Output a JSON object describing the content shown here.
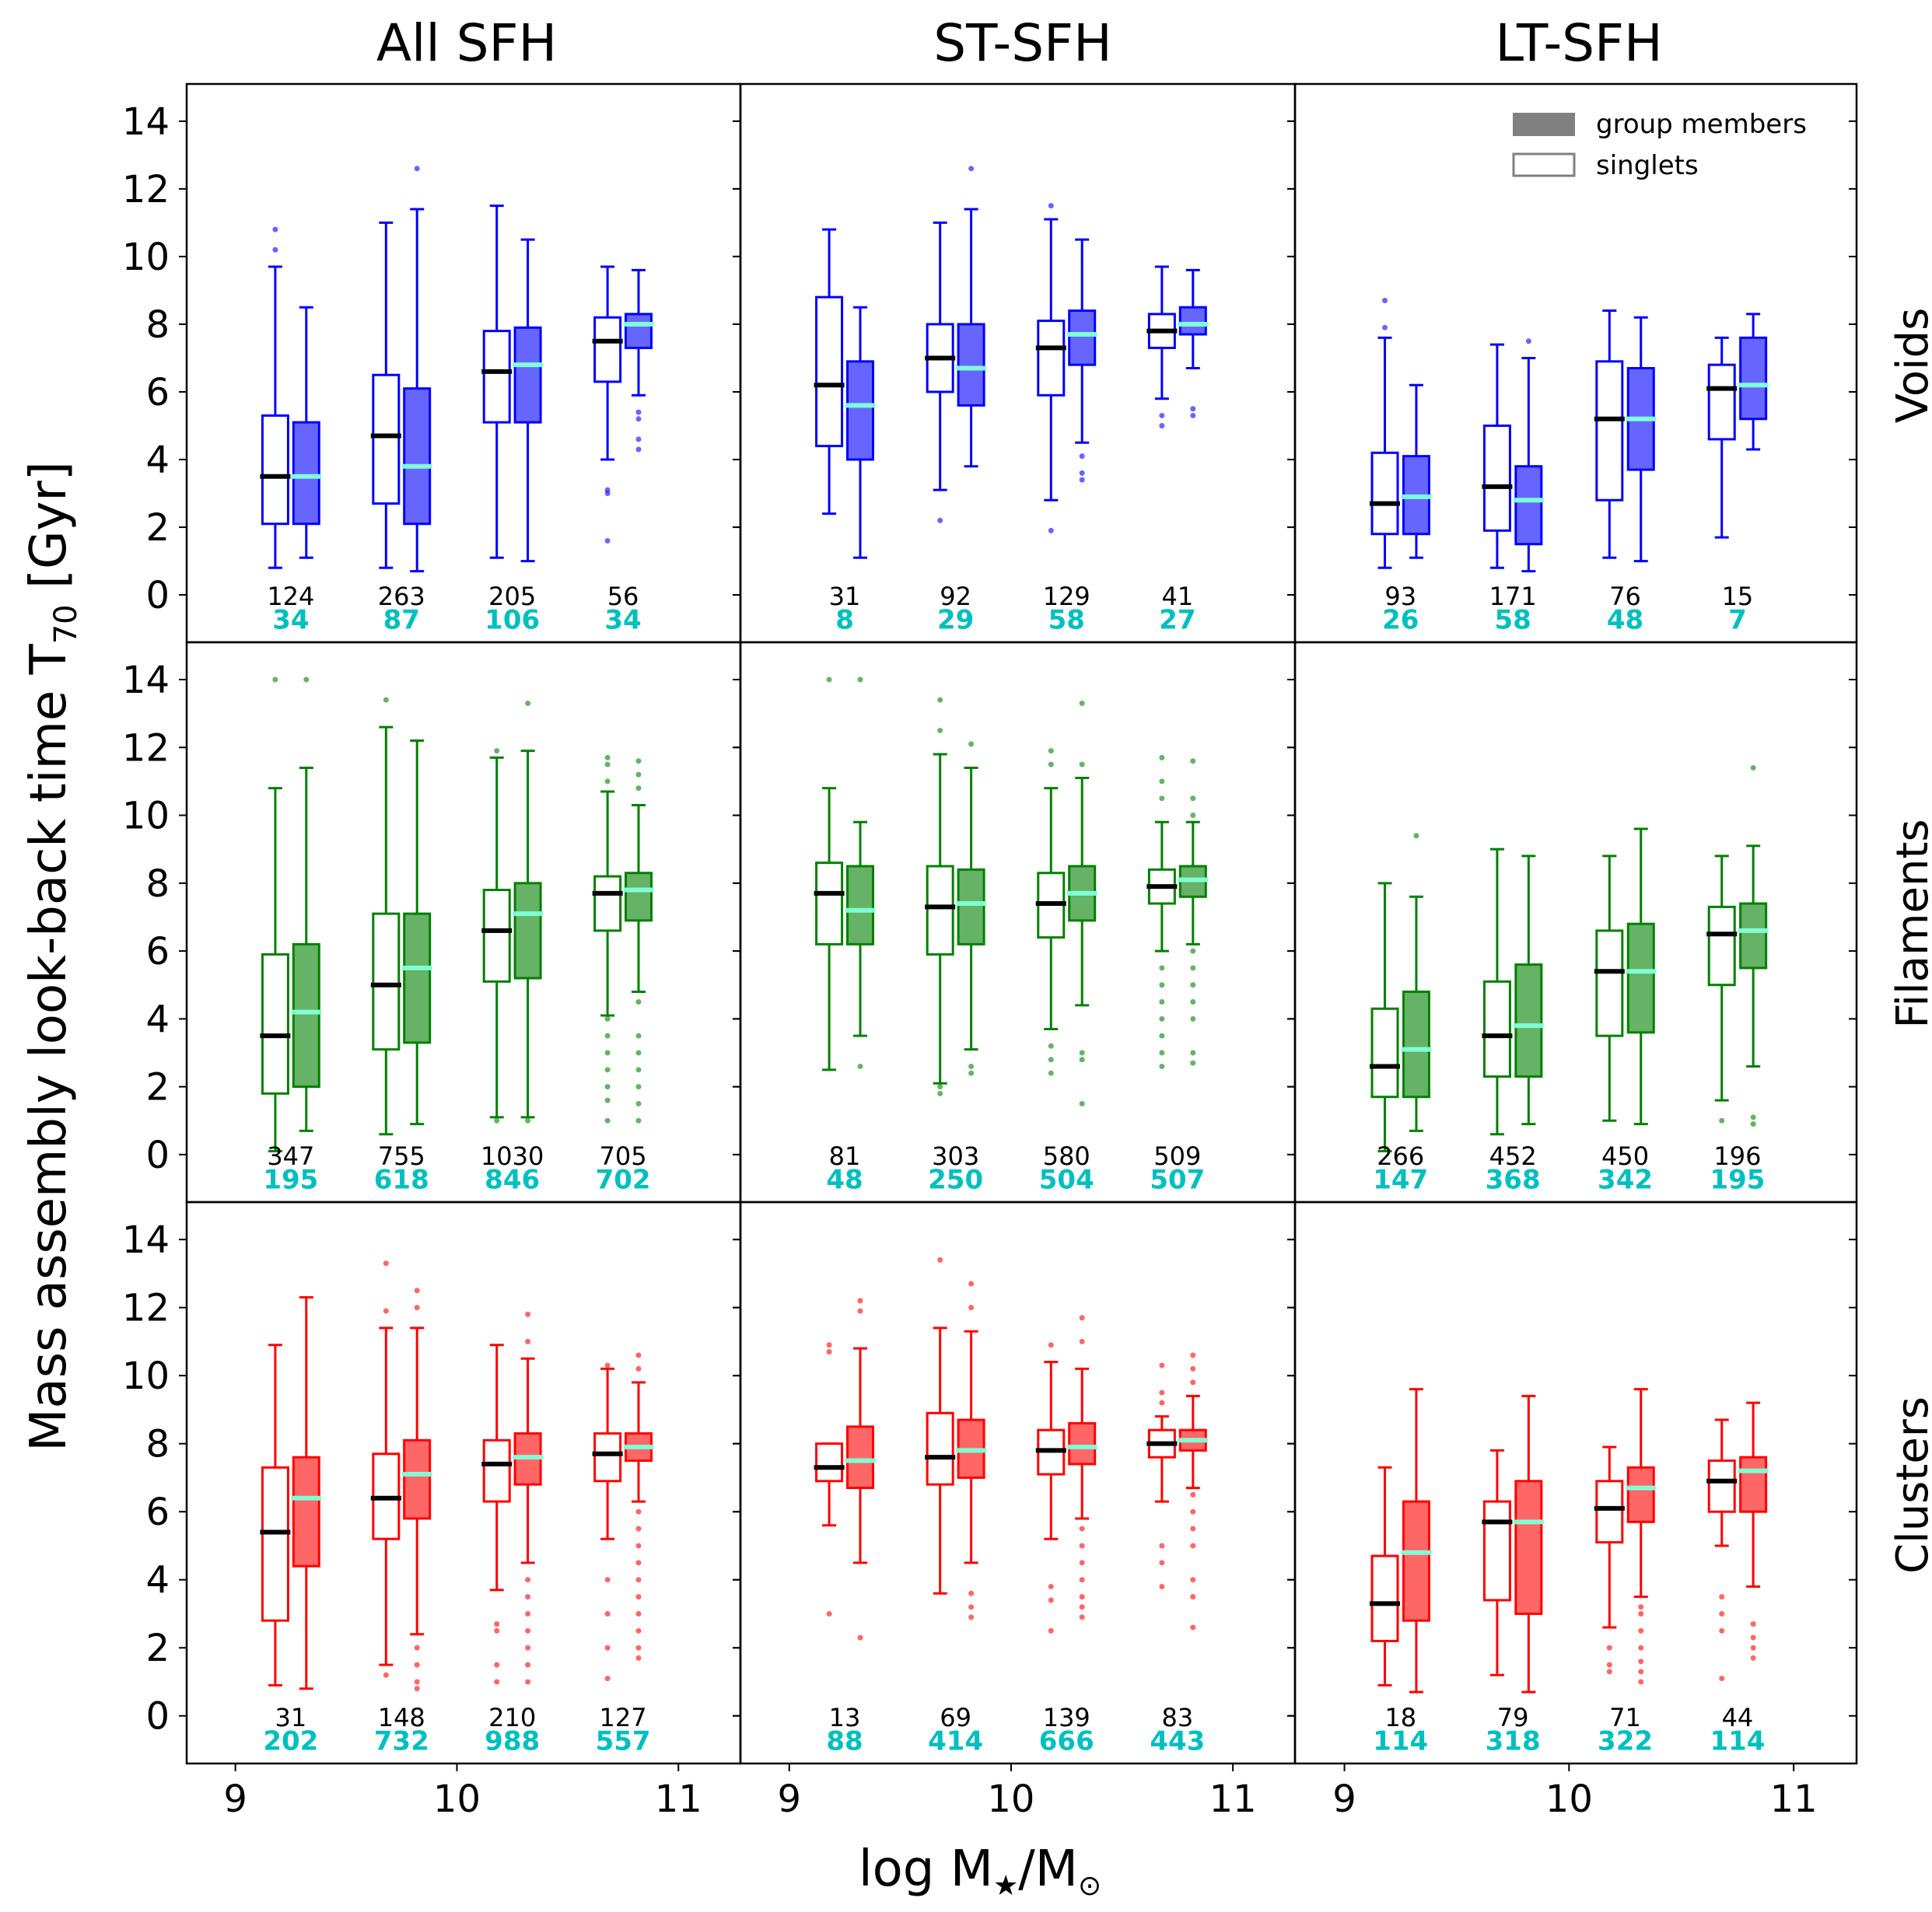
{
  "chart_data": {
    "type": "boxplot",
    "ylabel": "Mass assembly look-back time T",
    "ylabel_sub": "70",
    "ylabel_unit": " [Gyr]",
    "xlabel": "log M",
    "xlabel_star": "★",
    "xlabel_tail": "/M",
    "xlabel_sun": "⊙",
    "xlim": [
      8.78,
      11.28
    ],
    "ylim": [
      -1.4,
      15.1
    ],
    "xticks": [
      9,
      10,
      11
    ],
    "yticks": [
      0,
      2,
      4,
      6,
      8,
      10,
      12,
      14
    ],
    "columns": [
      "All SFH",
      "ST-SFH",
      "LT-SFH"
    ],
    "rows": [
      {
        "label": "Voids",
        "color": "#0000ff",
        "fill": "#6666ff"
      },
      {
        "label": "Filaments",
        "color": "#008000",
        "fill": "#66b266"
      },
      {
        "label": "Clusters",
        "color": "#ff0000",
        "fill": "#ff6666"
      }
    ],
    "median_colors": {
      "singlets": "#000000",
      "groups": "#7fffd4"
    },
    "count_colors": {
      "singlets": "#000000",
      "groups": "#00bfbf"
    },
    "legend": {
      "filled": "group members",
      "open": "singlets"
    },
    "bins": [
      9.25,
      9.75,
      10.25,
      10.75
    ],
    "panels": [
      [
        {
          "n_singlets": [
            "124",
            "263",
            "205",
            "56"
          ],
          "n_groups": [
            "34",
            "87",
            "106",
            "34"
          ],
          "singlets": [
            [
              0.8,
              2.1,
              3.5,
              5.3,
              9.7
            ],
            [
              0.8,
              2.7,
              4.7,
              6.5,
              11.0
            ],
            [
              1.1,
              5.1,
              6.6,
              7.8,
              11.5
            ],
            [
              4.0,
              6.3,
              7.5,
              8.2,
              9.7
            ]
          ],
          "groups": [
            [
              1.1,
              2.1,
              3.5,
              5.1,
              8.5
            ],
            [
              0.7,
              2.1,
              3.8,
              6.1,
              11.4
            ],
            [
              1.0,
              5.1,
              6.8,
              7.9,
              10.5
            ],
            [
              5.9,
              7.3,
              8.0,
              8.3,
              9.6
            ]
          ],
          "out_s": [
            [
              10.2,
              10.8
            ],
            [],
            [],
            [
              1.6,
              3.0,
              3.1
            ]
          ],
          "out_g": [
            [],
            [
              12.6
            ],
            [],
            [
              4.3,
              4.6,
              5.2,
              5.4
            ]
          ]
        },
        {
          "n_singlets": [
            "31",
            "92",
            "129",
            "41"
          ],
          "n_groups": [
            "8",
            "29",
            "58",
            "27"
          ],
          "singlets": [
            [
              2.4,
              4.4,
              6.2,
              8.8,
              10.8
            ],
            [
              3.1,
              6.0,
              7.0,
              8.0,
              11.0
            ],
            [
              2.8,
              5.9,
              7.3,
              8.1,
              11.1
            ],
            [
              5.8,
              7.3,
              7.8,
              8.3,
              9.7
            ]
          ],
          "groups": [
            [
              1.1,
              4.0,
              5.6,
              6.9,
              8.5
            ],
            [
              3.8,
              5.6,
              6.7,
              8.0,
              11.4
            ],
            [
              4.5,
              6.8,
              7.7,
              8.4,
              10.5
            ],
            [
              6.7,
              7.7,
              8.0,
              8.5,
              9.6
            ]
          ],
          "out_s": [
            [],
            [
              2.2
            ],
            [
              1.9,
              11.5
            ],
            [
              5.0,
              5.3
            ]
          ],
          "out_g": [
            [],
            [
              12.6
            ],
            [
              3.4,
              3.6,
              4.1
            ],
            [
              5.3,
              5.5
            ]
          ]
        },
        {
          "n_singlets": [
            "93",
            "171",
            "76",
            "15"
          ],
          "n_groups": [
            "26",
            "58",
            "48",
            "7"
          ],
          "singlets": [
            [
              0.8,
              1.8,
              2.7,
              4.2,
              7.6
            ],
            [
              0.8,
              1.9,
              3.2,
              5.0,
              7.4
            ],
            [
              1.1,
              2.8,
              5.2,
              6.9,
              8.4
            ],
            [
              1.7,
              4.6,
              6.1,
              6.8,
              7.6
            ]
          ],
          "groups": [
            [
              1.1,
              1.8,
              2.9,
              4.1,
              6.2
            ],
            [
              0.7,
              1.5,
              2.8,
              3.8,
              7.0
            ],
            [
              1.0,
              3.7,
              5.2,
              6.7,
              8.2
            ],
            [
              4.3,
              5.2,
              6.2,
              7.6,
              8.3
            ]
          ],
          "out_s": [
            [
              7.9,
              8.7
            ],
            [],
            [],
            []
          ],
          "out_g": [
            [],
            [
              7.5
            ],
            [],
            []
          ]
        }
      ],
      [
        {
          "n_singlets": [
            "347",
            "755",
            "1030",
            "705"
          ],
          "n_groups": [
            "195",
            "618",
            "846",
            "702"
          ],
          "singlets": [
            [
              0.1,
              1.8,
              3.5,
              5.9,
              10.8
            ],
            [
              0.6,
              3.1,
              5.0,
              7.1,
              12.6
            ],
            [
              1.1,
              5.1,
              6.6,
              7.8,
              11.7
            ],
            [
              4.1,
              6.6,
              7.7,
              8.2,
              10.7
            ]
          ],
          "groups": [
            [
              0.7,
              2.0,
              4.2,
              6.2,
              11.4
            ],
            [
              0.9,
              3.3,
              5.5,
              7.1,
              12.2
            ],
            [
              1.1,
              5.2,
              7.1,
              8.0,
              11.9
            ],
            [
              4.8,
              6.9,
              7.8,
              8.3,
              10.3
            ]
          ],
          "out_s": [
            [
              14.0
            ],
            [
              13.4
            ],
            [
              1.0,
              11.9
            ],
            [
              1.0,
              1.6,
              2.0,
              2.5,
              3.0,
              3.5,
              4.0,
              11.0,
              11.5,
              11.7
            ]
          ],
          "out_g": [
            [
              14.0
            ],
            [],
            [
              1.0,
              13.3
            ],
            [
              1.0,
              1.5,
              2.0,
              2.5,
              3.0,
              3.5,
              4.5,
              10.8,
              11.2,
              11.6
            ]
          ]
        },
        {
          "n_singlets": [
            "81",
            "303",
            "580",
            "509"
          ],
          "n_groups": [
            "48",
            "250",
            "504",
            "507"
          ],
          "singlets": [
            [
              2.5,
              6.2,
              7.7,
              8.6,
              10.8
            ],
            [
              2.1,
              5.9,
              7.3,
              8.5,
              11.8
            ],
            [
              3.7,
              6.4,
              7.4,
              8.3,
              10.8
            ],
            [
              6.0,
              7.4,
              7.9,
              8.4,
              9.8
            ]
          ],
          "groups": [
            [
              3.5,
              6.2,
              7.2,
              8.5,
              9.8
            ],
            [
              3.1,
              6.2,
              7.4,
              8.4,
              11.4
            ],
            [
              4.4,
              6.9,
              7.7,
              8.5,
              11.1
            ],
            [
              6.2,
              7.6,
              8.1,
              8.5,
              9.8
            ]
          ],
          "out_s": [
            [
              14.0
            ],
            [
              1.8,
              2.0,
              12.5,
              13.4
            ],
            [
              2.4,
              2.8,
              3.2,
              11.5,
              11.9
            ],
            [
              2.6,
              3.0,
              3.5,
              4.0,
              4.5,
              5.0,
              5.5,
              10.5,
              11.0,
              11.7
            ]
          ],
          "out_g": [
            [
              2.6,
              14.0
            ],
            [
              2.4,
              2.6,
              12.1
            ],
            [
              1.5,
              2.8,
              3.0,
              11.5,
              13.3
            ],
            [
              2.7,
              3.0,
              4.0,
              4.5,
              5.0,
              5.5,
              6.0,
              10.0,
              10.5,
              11.6
            ]
          ]
        },
        {
          "n_singlets": [
            "266",
            "452",
            "450",
            "196"
          ],
          "n_groups": [
            "147",
            "368",
            "342",
            "195"
          ],
          "singlets": [
            [
              0.1,
              1.7,
              2.6,
              4.3,
              8.0
            ],
            [
              0.6,
              2.3,
              3.5,
              5.1,
              9.0
            ],
            [
              1.0,
              3.5,
              5.4,
              6.6,
              8.8
            ],
            [
              1.6,
              5.0,
              6.5,
              7.3,
              8.8
            ]
          ],
          "groups": [
            [
              0.7,
              1.7,
              3.1,
              4.8,
              7.6
            ],
            [
              0.9,
              2.3,
              3.8,
              5.6,
              8.8
            ],
            [
              0.9,
              3.6,
              5.4,
              6.8,
              9.6
            ],
            [
              2.6,
              5.5,
              6.6,
              7.4,
              9.1
            ]
          ],
          "out_s": [
            [],
            [],
            [],
            [
              1.0
            ]
          ],
          "out_g": [
            [
              9.4
            ],
            [],
            [],
            [
              0.9,
              1.1,
              11.4
            ]
          ]
        }
      ],
      [
        {
          "n_singlets": [
            "31",
            "148",
            "210",
            "127"
          ],
          "n_groups": [
            "202",
            "732",
            "988",
            "557"
          ],
          "singlets": [
            [
              0.9,
              2.8,
              5.4,
              7.3,
              10.9
            ],
            [
              1.5,
              5.2,
              6.4,
              7.7,
              11.4
            ],
            [
              3.7,
              6.3,
              7.4,
              8.1,
              10.9
            ],
            [
              5.2,
              6.9,
              7.7,
              8.3,
              10.2
            ]
          ],
          "groups": [
            [
              0.8,
              4.4,
              6.4,
              7.6,
              12.3
            ],
            [
              2.4,
              5.8,
              7.1,
              8.1,
              11.4
            ],
            [
              4.5,
              6.8,
              7.6,
              8.3,
              10.5
            ],
            [
              6.3,
              7.5,
              7.9,
              8.3,
              9.8
            ]
          ],
          "out_s": [
            [],
            [
              1.2,
              11.9,
              13.3
            ],
            [
              1.0,
              1.5,
              2.5,
              2.7
            ],
            [
              1.1,
              2.0,
              3.0,
              4.0,
              10.3
            ]
          ],
          "out_g": [
            [],
            [
              0.8,
              1.0,
              1.5,
              2.0,
              12.0,
              12.5
            ],
            [
              1.0,
              1.5,
              2.0,
              2.5,
              3.0,
              3.5,
              4.0,
              11.0,
              11.8
            ],
            [
              1.7,
              2.0,
              2.5,
              3.0,
              3.5,
              4.0,
              4.5,
              5.0,
              5.5,
              6.0,
              10.2,
              10.6
            ]
          ]
        },
        {
          "n_singlets": [
            "13",
            "69",
            "139",
            "83"
          ],
          "n_groups": [
            "88",
            "414",
            "666",
            "443"
          ],
          "singlets": [
            [
              5.6,
              6.9,
              7.3,
              8.0,
              8.0
            ],
            [
              3.6,
              6.8,
              7.6,
              8.9,
              11.4
            ],
            [
              5.2,
              7.1,
              7.8,
              8.4,
              10.4
            ],
            [
              6.3,
              7.6,
              8.0,
              8.4,
              8.8
            ]
          ],
          "groups": [
            [
              4.5,
              6.7,
              7.5,
              8.5,
              10.8
            ],
            [
              4.5,
              7.0,
              7.8,
              8.7,
              11.3
            ],
            [
              5.8,
              7.4,
              7.9,
              8.6,
              10.2
            ],
            [
              6.7,
              7.8,
              8.1,
              8.4,
              9.4
            ]
          ],
          "out_s": [
            [
              3.0,
              10.7,
              10.9
            ],
            [
              13.4
            ],
            [
              2.5,
              3.4,
              3.8,
              10.9
            ],
            [
              3.8,
              4.5,
              5.0,
              9.2,
              9.5,
              10.3
            ]
          ],
          "out_g": [
            [
              2.3,
              11.9,
              12.2
            ],
            [
              2.9,
              3.2,
              3.6,
              12.0,
              12.7
            ],
            [
              2.9,
              3.2,
              3.5,
              4.0,
              4.5,
              5.0,
              5.5,
              11.0,
              11.7
            ],
            [
              2.6,
              3.5,
              4.0,
              5.0,
              5.5,
              6.0,
              6.5,
              9.8,
              10.2,
              10.6
            ]
          ]
        },
        {
          "n_singlets": [
            "18",
            "79",
            "71",
            "44"
          ],
          "n_groups": [
            "114",
            "318",
            "322",
            "114"
          ],
          "singlets": [
            [
              0.9,
              2.2,
              3.3,
              4.7,
              7.3
            ],
            [
              1.2,
              3.4,
              5.7,
              6.3,
              7.8
            ],
            [
              2.6,
              5.1,
              6.1,
              6.9,
              7.9
            ],
            [
              5.0,
              6.0,
              6.9,
              7.5,
              8.7
            ]
          ],
          "groups": [
            [
              0.7,
              2.8,
              4.8,
              6.3,
              9.6
            ],
            [
              0.7,
              3.0,
              5.7,
              6.9,
              9.4
            ],
            [
              3.5,
              5.7,
              6.7,
              7.3,
              9.6
            ],
            [
              3.8,
              6.0,
              7.2,
              7.6,
              9.2
            ]
          ],
          "out_s": [
            [],
            [],
            [
              1.3,
              1.5,
              2.0
            ],
            [
              1.1,
              2.5,
              3.0,
              3.5
            ]
          ],
          "out_g": [
            [],
            [],
            [
              1.0,
              1.3,
              1.6,
              2.0,
              2.5,
              3.0,
              3.2
            ],
            [
              1.7,
              2.0,
              2.3,
              2.7
            ]
          ]
        }
      ]
    ]
  }
}
